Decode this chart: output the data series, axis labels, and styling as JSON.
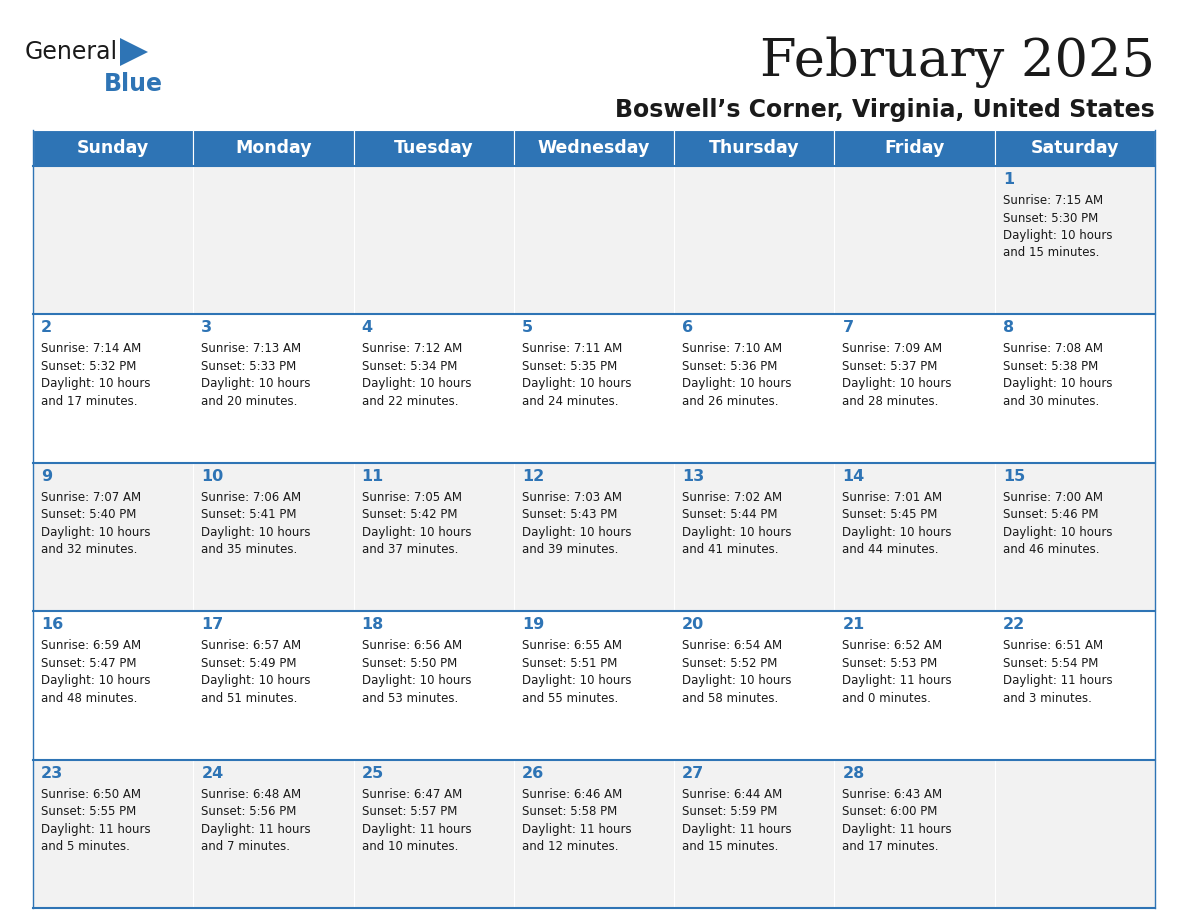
{
  "title": "February 2025",
  "subtitle": "Boswell’s Corner, Virginia, United States",
  "header_bg": "#2E74B5",
  "header_text": "#FFFFFF",
  "border_color": "#2E74B5",
  "day_headers": [
    "Sunday",
    "Monday",
    "Tuesday",
    "Wednesday",
    "Thursday",
    "Friday",
    "Saturday"
  ],
  "row_colors": [
    "#F2F2F2",
    "#FFFFFF",
    "#F2F2F2",
    "#FFFFFF",
    "#F2F2F2"
  ],
  "calendar_data": [
    [
      null,
      null,
      null,
      null,
      null,
      null,
      {
        "day": "1",
        "sunrise": "7:15 AM",
        "sunset": "5:30 PM",
        "daylight_line1": "Daylight: 10 hours",
        "daylight_line2": "and 15 minutes."
      }
    ],
    [
      {
        "day": "2",
        "sunrise": "7:14 AM",
        "sunset": "5:32 PM",
        "daylight_line1": "Daylight: 10 hours",
        "daylight_line2": "and 17 minutes."
      },
      {
        "day": "3",
        "sunrise": "7:13 AM",
        "sunset": "5:33 PM",
        "daylight_line1": "Daylight: 10 hours",
        "daylight_line2": "and 20 minutes."
      },
      {
        "day": "4",
        "sunrise": "7:12 AM",
        "sunset": "5:34 PM",
        "daylight_line1": "Daylight: 10 hours",
        "daylight_line2": "and 22 minutes."
      },
      {
        "day": "5",
        "sunrise": "7:11 AM",
        "sunset": "5:35 PM",
        "daylight_line1": "Daylight: 10 hours",
        "daylight_line2": "and 24 minutes."
      },
      {
        "day": "6",
        "sunrise": "7:10 AM",
        "sunset": "5:36 PM",
        "daylight_line1": "Daylight: 10 hours",
        "daylight_line2": "and 26 minutes."
      },
      {
        "day": "7",
        "sunrise": "7:09 AM",
        "sunset": "5:37 PM",
        "daylight_line1": "Daylight: 10 hours",
        "daylight_line2": "and 28 minutes."
      },
      {
        "day": "8",
        "sunrise": "7:08 AM",
        "sunset": "5:38 PM",
        "daylight_line1": "Daylight: 10 hours",
        "daylight_line2": "and 30 minutes."
      }
    ],
    [
      {
        "day": "9",
        "sunrise": "7:07 AM",
        "sunset": "5:40 PM",
        "daylight_line1": "Daylight: 10 hours",
        "daylight_line2": "and 32 minutes."
      },
      {
        "day": "10",
        "sunrise": "7:06 AM",
        "sunset": "5:41 PM",
        "daylight_line1": "Daylight: 10 hours",
        "daylight_line2": "and 35 minutes."
      },
      {
        "day": "11",
        "sunrise": "7:05 AM",
        "sunset": "5:42 PM",
        "daylight_line1": "Daylight: 10 hours",
        "daylight_line2": "and 37 minutes."
      },
      {
        "day": "12",
        "sunrise": "7:03 AM",
        "sunset": "5:43 PM",
        "daylight_line1": "Daylight: 10 hours",
        "daylight_line2": "and 39 minutes."
      },
      {
        "day": "13",
        "sunrise": "7:02 AM",
        "sunset": "5:44 PM",
        "daylight_line1": "Daylight: 10 hours",
        "daylight_line2": "and 41 minutes."
      },
      {
        "day": "14",
        "sunrise": "7:01 AM",
        "sunset": "5:45 PM",
        "daylight_line1": "Daylight: 10 hours",
        "daylight_line2": "and 44 minutes."
      },
      {
        "day": "15",
        "sunrise": "7:00 AM",
        "sunset": "5:46 PM",
        "daylight_line1": "Daylight: 10 hours",
        "daylight_line2": "and 46 minutes."
      }
    ],
    [
      {
        "day": "16",
        "sunrise": "6:59 AM",
        "sunset": "5:47 PM",
        "daylight_line1": "Daylight: 10 hours",
        "daylight_line2": "and 48 minutes."
      },
      {
        "day": "17",
        "sunrise": "6:57 AM",
        "sunset": "5:49 PM",
        "daylight_line1": "Daylight: 10 hours",
        "daylight_line2": "and 51 minutes."
      },
      {
        "day": "18",
        "sunrise": "6:56 AM",
        "sunset": "5:50 PM",
        "daylight_line1": "Daylight: 10 hours",
        "daylight_line2": "and 53 minutes."
      },
      {
        "day": "19",
        "sunrise": "6:55 AM",
        "sunset": "5:51 PM",
        "daylight_line1": "Daylight: 10 hours",
        "daylight_line2": "and 55 minutes."
      },
      {
        "day": "20",
        "sunrise": "6:54 AM",
        "sunset": "5:52 PM",
        "daylight_line1": "Daylight: 10 hours",
        "daylight_line2": "and 58 minutes."
      },
      {
        "day": "21",
        "sunrise": "6:52 AM",
        "sunset": "5:53 PM",
        "daylight_line1": "Daylight: 11 hours",
        "daylight_line2": "and 0 minutes."
      },
      {
        "day": "22",
        "sunrise": "6:51 AM",
        "sunset": "5:54 PM",
        "daylight_line1": "Daylight: 11 hours",
        "daylight_line2": "and 3 minutes."
      }
    ],
    [
      {
        "day": "23",
        "sunrise": "6:50 AM",
        "sunset": "5:55 PM",
        "daylight_line1": "Daylight: 11 hours",
        "daylight_line2": "and 5 minutes."
      },
      {
        "day": "24",
        "sunrise": "6:48 AM",
        "sunset": "5:56 PM",
        "daylight_line1": "Daylight: 11 hours",
        "daylight_line2": "and 7 minutes."
      },
      {
        "day": "25",
        "sunrise": "6:47 AM",
        "sunset": "5:57 PM",
        "daylight_line1": "Daylight: 11 hours",
        "daylight_line2": "and 10 minutes."
      },
      {
        "day": "26",
        "sunrise": "6:46 AM",
        "sunset": "5:58 PM",
        "daylight_line1": "Daylight: 11 hours",
        "daylight_line2": "and 12 minutes."
      },
      {
        "day": "27",
        "sunrise": "6:44 AM",
        "sunset": "5:59 PM",
        "daylight_line1": "Daylight: 11 hours",
        "daylight_line2": "and 15 minutes."
      },
      {
        "day": "28",
        "sunrise": "6:43 AM",
        "sunset": "6:00 PM",
        "daylight_line1": "Daylight: 11 hours",
        "daylight_line2": "and 17 minutes."
      },
      null
    ]
  ]
}
